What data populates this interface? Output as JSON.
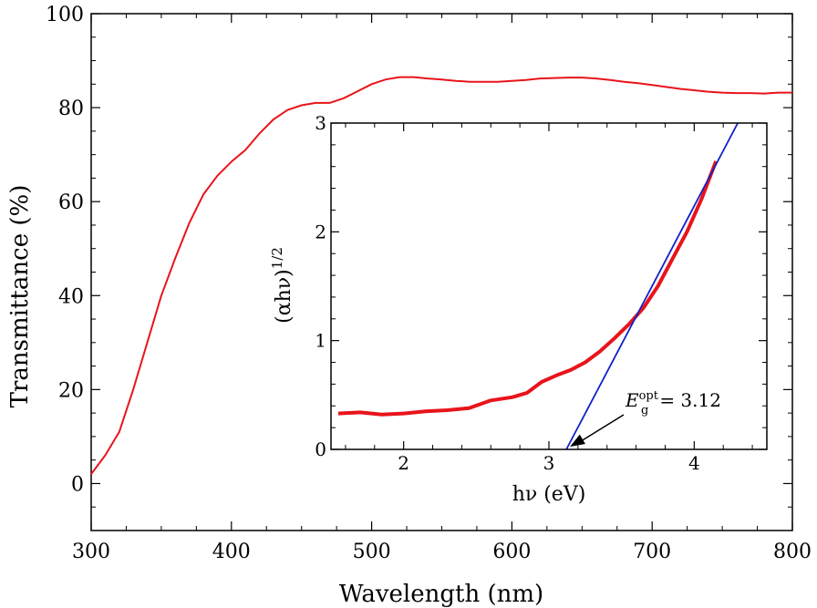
{
  "chart_data": [
    {
      "type": "line",
      "xlabel": "Wavelength (nm)",
      "ylabel": "Transmittance (%)",
      "xlim": [
        300,
        800
      ],
      "ylim": [
        -10,
        100
      ],
      "xticks": [
        300,
        400,
        500,
        600,
        700,
        800
      ],
      "yticks": [
        0,
        20,
        40,
        60,
        80,
        100
      ],
      "grid": false,
      "series": [
        {
          "color": "#e8141b",
          "x": [
            300,
            310,
            320,
            330,
            340,
            350,
            360,
            370,
            380,
            390,
            400,
            410,
            420,
            430,
            440,
            450,
            460,
            470,
            480,
            490,
            500,
            510,
            520,
            530,
            540,
            550,
            560,
            570,
            580,
            590,
            600,
            610,
            620,
            630,
            640,
            650,
            660,
            670,
            680,
            690,
            700,
            710,
            720,
            730,
            740,
            750,
            760,
            770,
            780,
            790,
            800
          ],
          "y": [
            2,
            6,
            11,
            20,
            30,
            40,
            48,
            55.5,
            61.5,
            65.5,
            68.5,
            71,
            74.5,
            77.5,
            79.5,
            80.5,
            81,
            81,
            82,
            83.5,
            85,
            86,
            86.5,
            86.5,
            86.2,
            86,
            85.7,
            85.5,
            85.5,
            85.5,
            85.7,
            85.9,
            86.2,
            86.3,
            86.4,
            86.4,
            86.2,
            85.9,
            85.5,
            85.2,
            84.8,
            84.4,
            84,
            83.7,
            83.4,
            83.2,
            83.1,
            83.1,
            83,
            83.2,
            83.2
          ]
        }
      ]
    },
    {
      "type": "line",
      "xlabel": "hν (eV)",
      "ylabel": "(αhν)^1/2",
      "xlim": [
        1.5,
        4.5
      ],
      "ylim": [
        0,
        3
      ],
      "xticks": [
        2,
        3,
        4
      ],
      "yticks": [
        0,
        1,
        2,
        3
      ],
      "grid": false,
      "annotation": {
        "text_symbol": "E",
        "text_sub": "g",
        "text_sup": "opt",
        "text_rest": "= 3.12",
        "arrow_to": [
          3.12,
          0
        ]
      },
      "series": [
        {
          "color": "#e8141b",
          "x": [
            1.55,
            1.7,
            1.85,
            2.0,
            2.15,
            2.3,
            2.45,
            2.6,
            2.75,
            2.85,
            2.95,
            3.05,
            3.15,
            3.25,
            3.35,
            3.45,
            3.55,
            3.65,
            3.75,
            3.85,
            3.95,
            4.05,
            4.15
          ],
          "y": [
            0.33,
            0.34,
            0.32,
            0.33,
            0.35,
            0.36,
            0.38,
            0.45,
            0.48,
            0.52,
            0.62,
            0.68,
            0.73,
            0.8,
            0.9,
            1.02,
            1.15,
            1.3,
            1.5,
            1.75,
            2.0,
            2.3,
            2.65
          ]
        },
        {
          "color": "#1020c8",
          "x": [
            3.12,
            4.3
          ],
          "y": [
            0,
            3.0
          ]
        }
      ]
    }
  ]
}
